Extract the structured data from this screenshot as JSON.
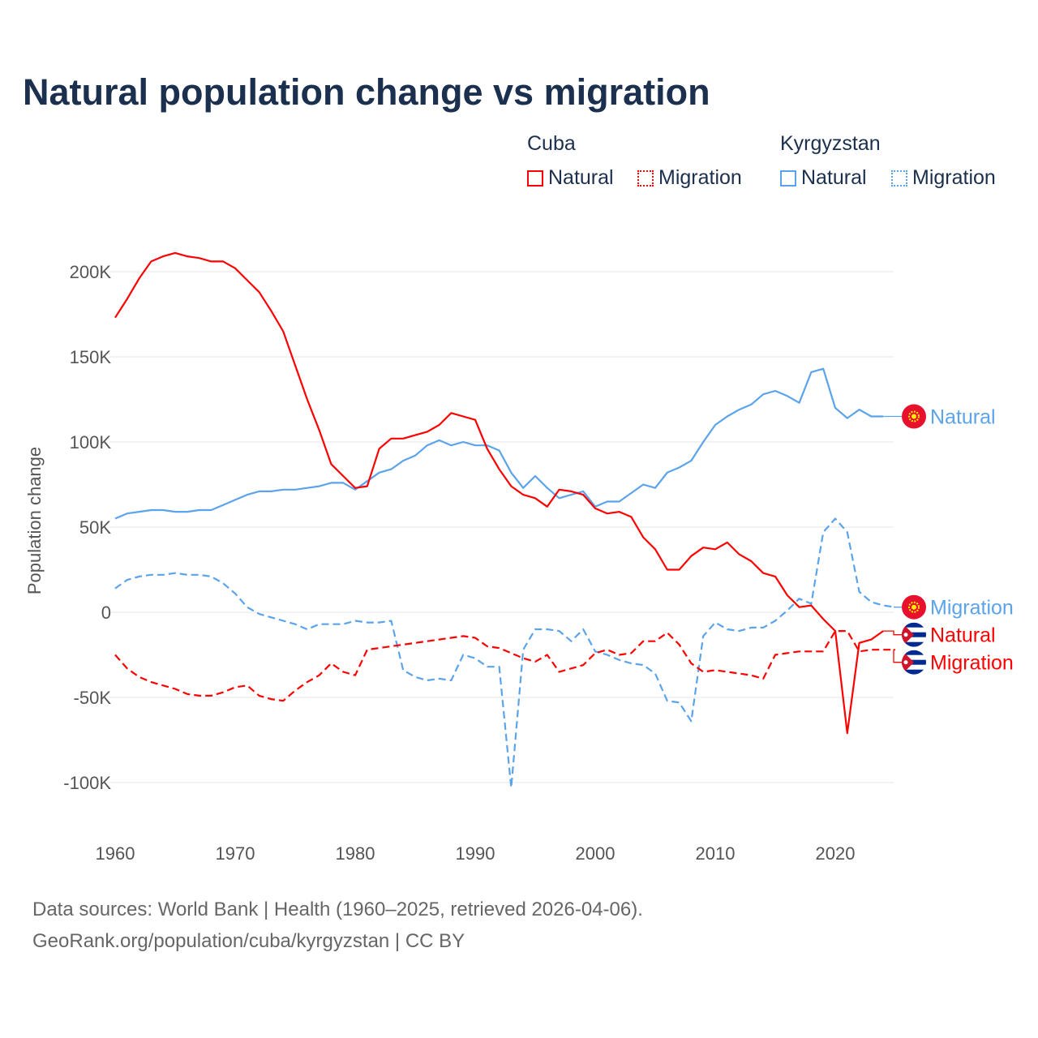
{
  "title": "Natural population change vs migration",
  "legend": {
    "groups": [
      {
        "name": "Cuba",
        "items": [
          {
            "label": "Natural",
            "style": "solid",
            "color": "#ff0000"
          },
          {
            "label": "Migration",
            "style": "dotted",
            "color": "#ff0000"
          }
        ]
      },
      {
        "name": "Kyrgyzstan",
        "items": [
          {
            "label": "Natural",
            "style": "solid",
            "color": "#5ba3ea"
          },
          {
            "label": "Migration",
            "style": "dotted",
            "color": "#5ba3ea"
          }
        ]
      }
    ]
  },
  "footer": {
    "line1": "Data sources: World Bank | Health (1960–2025, retrieved 2026-04-06).",
    "line2": "GeoRank.org/population/cuba/kyrgyzstan | CC BY"
  },
  "chart_data": {
    "type": "line",
    "title": "Natural population change vs migration",
    "xlabel": "",
    "ylabel": "Population change",
    "xlim": [
      1960,
      2025
    ],
    "ylim": [
      -100000,
      200000
    ],
    "x_ticks": [
      1960,
      1970,
      1980,
      1990,
      2000,
      2010,
      2020
    ],
    "x_tick_labels": [
      "1960",
      "1970",
      "1980",
      "1990",
      "2000",
      "2010",
      "2020"
    ],
    "y_ticks": [
      200000,
      150000,
      100000,
      50000,
      0,
      -50000,
      -100000
    ],
    "y_tick_labels": [
      "200K",
      "150K",
      "100K",
      "50K",
      "0",
      "-50K",
      "-100K"
    ],
    "grid": true,
    "start_year": 1960,
    "series": [
      {
        "name": "Kyrgyzstan Natural",
        "end_label": "Natural",
        "flag": "kyrgyzstan",
        "color": "#5ba3ea",
        "dash": false,
        "values_k": [
          55,
          58,
          59,
          60,
          60,
          59,
          59,
          60,
          60,
          63,
          66,
          69,
          71,
          71,
          72,
          72,
          73,
          74,
          76,
          76,
          72,
          77,
          82,
          84,
          89,
          92,
          98,
          101,
          98,
          100,
          98,
          98,
          95,
          82,
          73,
          80,
          73,
          67,
          69,
          71,
          62,
          65,
          65,
          70,
          75,
          73,
          82,
          85,
          89,
          100,
          110,
          115,
          119,
          122,
          128,
          130,
          127,
          123,
          141,
          143,
          120,
          114,
          119,
          115,
          115
        ]
      },
      {
        "name": "Kyrgyzstan Migration",
        "end_label": "Migration",
        "flag": "kyrgyzstan",
        "color": "#5ba3ea",
        "dash": true,
        "values_k": [
          14,
          19,
          21,
          22,
          22,
          23,
          22,
          22,
          21,
          17,
          11,
          3,
          -1,
          -3,
          -5,
          -7,
          -10,
          -7,
          -7,
          -7,
          -5,
          -6,
          -6,
          -5,
          -34,
          -38,
          -40,
          -39,
          -40,
          -25,
          -27,
          -32,
          -32,
          -103,
          -22,
          -10,
          -10,
          -11,
          -17,
          -10,
          -23,
          -25,
          -28,
          -30,
          -31,
          -36,
          -52,
          -53,
          -64,
          -14,
          -6,
          -10,
          -11,
          -9,
          -9,
          -5,
          1,
          8,
          5,
          47,
          55,
          47,
          12,
          6,
          4,
          3
        ]
      },
      {
        "name": "Cuba Natural",
        "end_label": "Natural",
        "flag": "cuba",
        "color": "#ff0000",
        "dash": false,
        "values_k": [
          173,
          184,
          196,
          206,
          209,
          211,
          209,
          208,
          206,
          206,
          202,
          195,
          188,
          177,
          165,
          145,
          125,
          107,
          87,
          80,
          73,
          74,
          96,
          102,
          102,
          104,
          106,
          110,
          117,
          115,
          113,
          96,
          84,
          74,
          69,
          67,
          62,
          72,
          71,
          69,
          61,
          58,
          59,
          56,
          44,
          37,
          25,
          25,
          33,
          38,
          37,
          41,
          34,
          30,
          23,
          21,
          10,
          3,
          4,
          -4,
          -11,
          -71,
          -18,
          -16,
          -11
        ]
      },
      {
        "name": "Cuba Migration",
        "end_label": "Migration",
        "flag": "cuba",
        "color": "#ff0000",
        "dash": true,
        "values_k": [
          -25,
          -33,
          -38,
          -41,
          -43,
          -45,
          -48,
          -49,
          -49,
          -47,
          -44,
          -43,
          -49,
          -51,
          -52,
          -46,
          -41,
          -37,
          -30,
          -35,
          -37,
          -22,
          -21,
          -20,
          -19,
          -18,
          -17,
          -16,
          -15,
          -14,
          -15,
          -20,
          -21,
          -24,
          -27,
          -29,
          -25,
          -35,
          -33,
          -31,
          -24,
          -22,
          -25,
          -24,
          -17,
          -17,
          -12,
          -19,
          -30,
          -35,
          -34,
          -35,
          -36,
          -37,
          -39,
          -25,
          -24,
          -23,
          -23,
          -23,
          -11,
          -11,
          -23,
          -22,
          -22,
          -22
        ]
      }
    ]
  }
}
